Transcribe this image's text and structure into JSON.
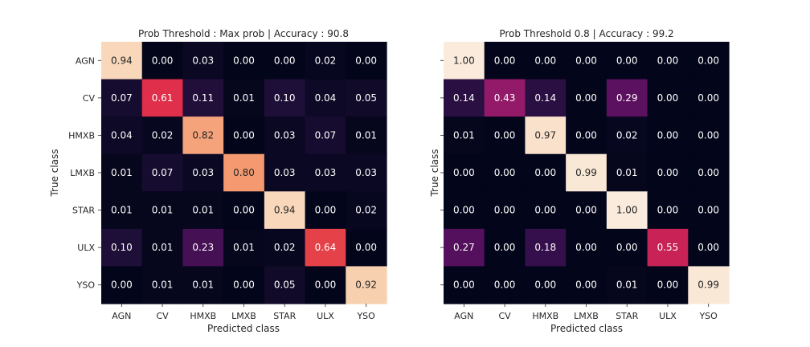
{
  "chart_data": [
    {
      "type": "heatmap",
      "title": "Prob Threshold : Max prob | Accuracy : 90.8",
      "xlabel": "Predicted class",
      "ylabel": "True class",
      "categories_x": [
        "AGN",
        "CV",
        "HMXB",
        "LMXB",
        "STAR",
        "ULX",
        "YSO"
      ],
      "categories_y": [
        "AGN",
        "CV",
        "HMXB",
        "LMXB",
        "STAR",
        "ULX",
        "YSO"
      ],
      "show_y_tick_labels": true,
      "colormap": "rocket",
      "vmin": 0,
      "vmax": 1,
      "values": [
        [
          0.94,
          0.0,
          0.03,
          0.0,
          0.0,
          0.02,
          0.0
        ],
        [
          0.07,
          0.61,
          0.11,
          0.01,
          0.1,
          0.04,
          0.05
        ],
        [
          0.04,
          0.02,
          0.82,
          0.0,
          0.03,
          0.07,
          0.01
        ],
        [
          0.01,
          0.07,
          0.03,
          0.8,
          0.03,
          0.03,
          0.03
        ],
        [
          0.01,
          0.01,
          0.01,
          0.0,
          0.94,
          0.0,
          0.02
        ],
        [
          0.1,
          0.01,
          0.23,
          0.01,
          0.02,
          0.64,
          0.0
        ],
        [
          0.0,
          0.01,
          0.01,
          0.0,
          0.05,
          0.0,
          0.92
        ]
      ]
    },
    {
      "type": "heatmap",
      "title": "Prob Threshold 0.8 | Accuracy : 99.2",
      "xlabel": "Predicted class",
      "ylabel": "True class",
      "categories_x": [
        "AGN",
        "CV",
        "HMXB",
        "LMXB",
        "STAR",
        "ULX",
        "YSO"
      ],
      "categories_y": [
        "AGN",
        "CV",
        "HMXB",
        "LMXB",
        "STAR",
        "ULX",
        "YSO"
      ],
      "show_y_tick_labels": false,
      "colormap": "rocket",
      "vmin": 0,
      "vmax": 1,
      "values": [
        [
          1.0,
          0.0,
          0.0,
          0.0,
          0.0,
          0.0,
          0.0
        ],
        [
          0.14,
          0.43,
          0.14,
          0.0,
          0.29,
          0.0,
          0.0
        ],
        [
          0.01,
          0.0,
          0.97,
          0.0,
          0.02,
          0.0,
          0.0
        ],
        [
          0.0,
          0.0,
          0.0,
          0.99,
          0.01,
          0.0,
          0.0
        ],
        [
          0.0,
          0.0,
          0.0,
          0.0,
          1.0,
          0.0,
          0.0
        ],
        [
          0.27,
          0.0,
          0.18,
          0.0,
          0.0,
          0.55,
          0.0
        ],
        [
          0.0,
          0.0,
          0.0,
          0.0,
          0.01,
          0.0,
          0.99
        ]
      ]
    }
  ]
}
